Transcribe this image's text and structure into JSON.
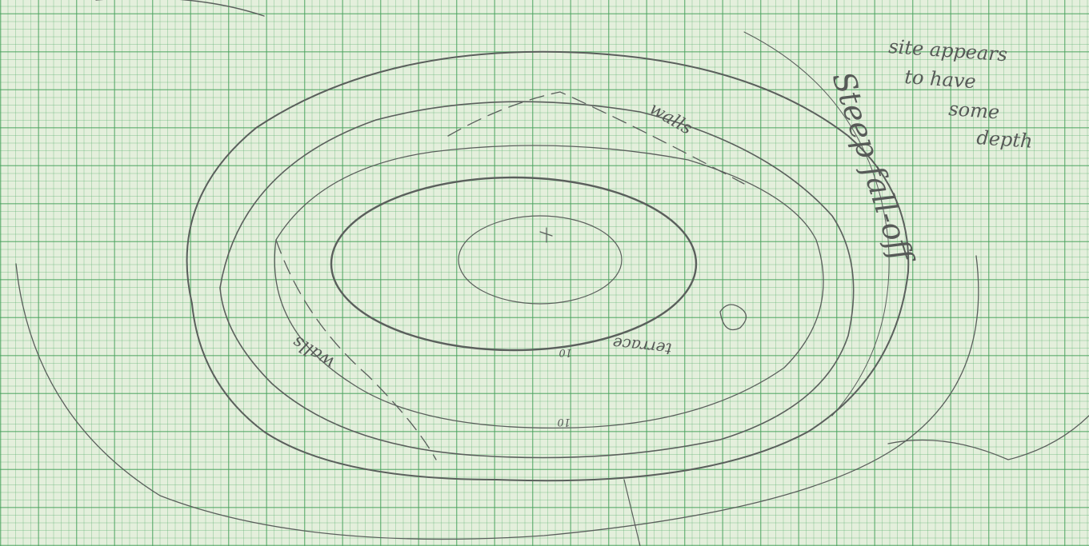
{
  "notes": {
    "site_note": [
      "site appears",
      "to have",
      "some",
      "depth"
    ],
    "steep": "Steep fall-off",
    "walls_upper": "walls",
    "walls_lower": "walls",
    "terrace": "terrace",
    "contour_labels": [
      "10",
      "10"
    ]
  }
}
